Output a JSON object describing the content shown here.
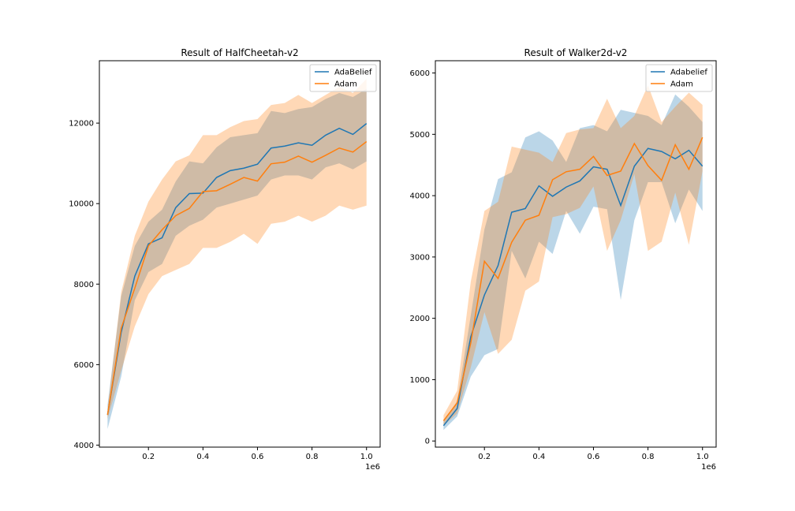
{
  "chart_data": [
    {
      "type": "line",
      "title": "Result of HalfCheetah-v2",
      "xlabel": "",
      "ylabel": "",
      "x_offset_label": "1e6",
      "xlim": [
        0.02,
        1.05
      ],
      "ylim": [
        3950,
        13550
      ],
      "xticks": [
        0.2,
        0.4,
        0.6,
        0.8,
        1.0
      ],
      "xtick_labels": [
        "0.2",
        "0.4",
        "0.6",
        "0.8",
        "1.0"
      ],
      "yticks": [
        4000,
        6000,
        8000,
        10000,
        12000
      ],
      "ytick_labels": [
        "4000",
        "6000",
        "8000",
        "10000",
        "12000"
      ],
      "legend_position": "top-right",
      "grid": false,
      "x": [
        0.05,
        0.1,
        0.15,
        0.2,
        0.25,
        0.3,
        0.35,
        0.4,
        0.45,
        0.5,
        0.55,
        0.6,
        0.65,
        0.7,
        0.75,
        0.8,
        0.85,
        0.9,
        0.95,
        1.0
      ],
      "series": [
        {
          "name": "AdaBelief",
          "color": "#1f77b4",
          "band_color": "#1f77b4",
          "values": [
            4750,
            6800,
            8200,
            9000,
            9150,
            9900,
            10250,
            10260,
            10650,
            10820,
            10880,
            10980,
            11380,
            11430,
            11510,
            11450,
            11700,
            11870,
            11720,
            11990
          ],
          "lower": [
            4400,
            5700,
            7600,
            8300,
            8500,
            9200,
            9450,
            9600,
            9900,
            10000,
            10100,
            10200,
            10600,
            10700,
            10700,
            10600,
            10900,
            11000,
            10850,
            11050
          ],
          "upper": [
            5000,
            7700,
            8950,
            9550,
            9850,
            10550,
            11050,
            11000,
            11400,
            11650,
            11700,
            11750,
            12300,
            12250,
            12350,
            12400,
            12600,
            12750,
            12650,
            12850
          ]
        },
        {
          "name": "Adam",
          "color": "#ff7f0e",
          "band_color": "#ff7f0e",
          "values": [
            4750,
            6900,
            7900,
            8950,
            9350,
            9700,
            9880,
            10300,
            10320,
            10480,
            10650,
            10560,
            10990,
            11030,
            11180,
            11030,
            11200,
            11380,
            11280,
            11540
          ],
          "lower": [
            4650,
            5850,
            6950,
            7750,
            8200,
            8350,
            8500,
            8900,
            8900,
            9050,
            9250,
            9000,
            9500,
            9550,
            9700,
            9550,
            9700,
            9950,
            9850,
            9950
          ],
          "upper": [
            4900,
            7800,
            9200,
            10050,
            10600,
            11050,
            11200,
            11700,
            11700,
            11900,
            12050,
            12100,
            12450,
            12500,
            12700,
            12500,
            12700,
            12900,
            12750,
            13100
          ]
        }
      ]
    },
    {
      "type": "line",
      "title": "Result of Walker2d-v2",
      "xlabel": "",
      "ylabel": "",
      "x_offset_label": "1e6",
      "xlim": [
        0.02,
        1.05
      ],
      "ylim": [
        -100,
        6200
      ],
      "xticks": [
        0.2,
        0.4,
        0.6,
        0.8,
        1.0
      ],
      "xtick_labels": [
        "0.2",
        "0.4",
        "0.6",
        "0.8",
        "1.0"
      ],
      "yticks": [
        0,
        1000,
        2000,
        3000,
        4000,
        5000,
        6000
      ],
      "ytick_labels": [
        "0",
        "1000",
        "2000",
        "3000",
        "4000",
        "5000",
        "6000"
      ],
      "legend_position": "top-right",
      "grid": false,
      "x": [
        0.05,
        0.1,
        0.15,
        0.2,
        0.25,
        0.3,
        0.35,
        0.4,
        0.45,
        0.5,
        0.55,
        0.6,
        0.65,
        0.7,
        0.75,
        0.8,
        0.85,
        0.9,
        0.95,
        1.0
      ],
      "series": [
        {
          "name": "Adabelief",
          "color": "#1f77b4",
          "band_color": "#1f77b4",
          "values": [
            250,
            530,
            1700,
            2380,
            2860,
            3730,
            3790,
            4160,
            3990,
            4140,
            4240,
            4470,
            4430,
            3840,
            4480,
            4770,
            4720,
            4600,
            4740,
            4480
          ],
          "lower": [
            180,
            400,
            1050,
            1400,
            1500,
            3100,
            2650,
            3250,
            3050,
            3750,
            3380,
            3820,
            3780,
            2300,
            3600,
            4220,
            4220,
            3550,
            4100,
            3750
          ],
          "upper": [
            320,
            650,
            2050,
            3450,
            4270,
            4380,
            4950,
            5050,
            4900,
            4550,
            5100,
            5150,
            5050,
            5400,
            5350,
            5300,
            5150,
            5650,
            5450,
            5200
          ]
        },
        {
          "name": "Adam",
          "color": "#ff7f0e",
          "band_color": "#ff7f0e",
          "values": [
            330,
            620,
            1600,
            2930,
            2650,
            3240,
            3600,
            3680,
            4260,
            4390,
            4430,
            4640,
            4330,
            4400,
            4850,
            4490,
            4250,
            4830,
            4430,
            4950
          ],
          "lower": [
            250,
            450,
            1200,
            2100,
            1420,
            1650,
            2450,
            2600,
            3650,
            3700,
            3800,
            4150,
            3100,
            3600,
            4350,
            3100,
            3250,
            4050,
            3200,
            4400
          ],
          "upper": [
            420,
            820,
            2600,
            3750,
            3900,
            4800,
            4750,
            4700,
            4550,
            5020,
            5080,
            5100,
            5580,
            5100,
            5300,
            5800,
            5200,
            5450,
            5680,
            5480
          ]
        }
      ]
    }
  ]
}
